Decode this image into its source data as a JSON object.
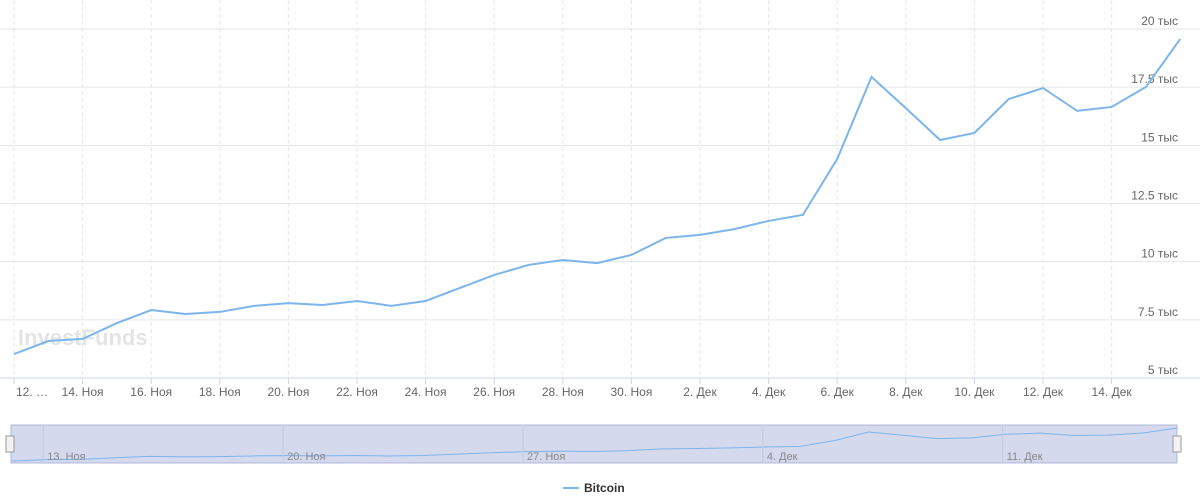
{
  "chart_data": {
    "type": "line",
    "watermark": "InvestFunds",
    "categories": [
      "12. …",
      null,
      "14. Ноя",
      null,
      "16. Ноя",
      null,
      "18. Ноя",
      null,
      "20. Ноя",
      null,
      "22. Ноя",
      null,
      "24. Ноя",
      null,
      "26. Ноя",
      null,
      "28. Ноя",
      null,
      "30. Ноя",
      null,
      "2. Дек",
      null,
      "4. Дек",
      null,
      "6. Дек",
      null,
      "8. Дек",
      null,
      "10. Дек",
      null,
      "12. Дек",
      null,
      "14. Дек",
      null,
      null
    ],
    "series": [
      {
        "name": "Bitcoin",
        "color": "#7cb5ec",
        "values": [
          6030,
          6590,
          6680,
          7360,
          7920,
          7750,
          7840,
          8100,
          8220,
          8140,
          8310,
          8100,
          8310,
          8870,
          9430,
          9860,
          10070,
          9940,
          10290,
          11020,
          11150,
          11400,
          11750,
          12010,
          14410,
          17940,
          16600,
          15230,
          15530,
          16990,
          17460,
          16480,
          16650,
          17510,
          19570
        ]
      }
    ],
    "ylim": [
      5000,
      20000
    ],
    "yticks": [
      {
        "value": 5000,
        "label": "5 тыс"
      },
      {
        "value": 7500,
        "label": "7.5 тыс"
      },
      {
        "value": 10000,
        "label": "10 тыс"
      },
      {
        "value": 12500,
        "label": "12.5 тыс"
      },
      {
        "value": 15000,
        "label": "15 тыс"
      },
      {
        "value": 17500,
        "label": "17.5 тыс"
      },
      {
        "value": 20000,
        "label": "20 тыс"
      }
    ],
    "grid": true,
    "navigator": {
      "labels": [
        "13. Ноя",
        "20. Ноя",
        "27. Ноя",
        "4. Дек",
        "11. Дек"
      ],
      "label_indices": [
        1,
        8,
        15,
        22,
        29
      ]
    },
    "legend": "bottom"
  }
}
